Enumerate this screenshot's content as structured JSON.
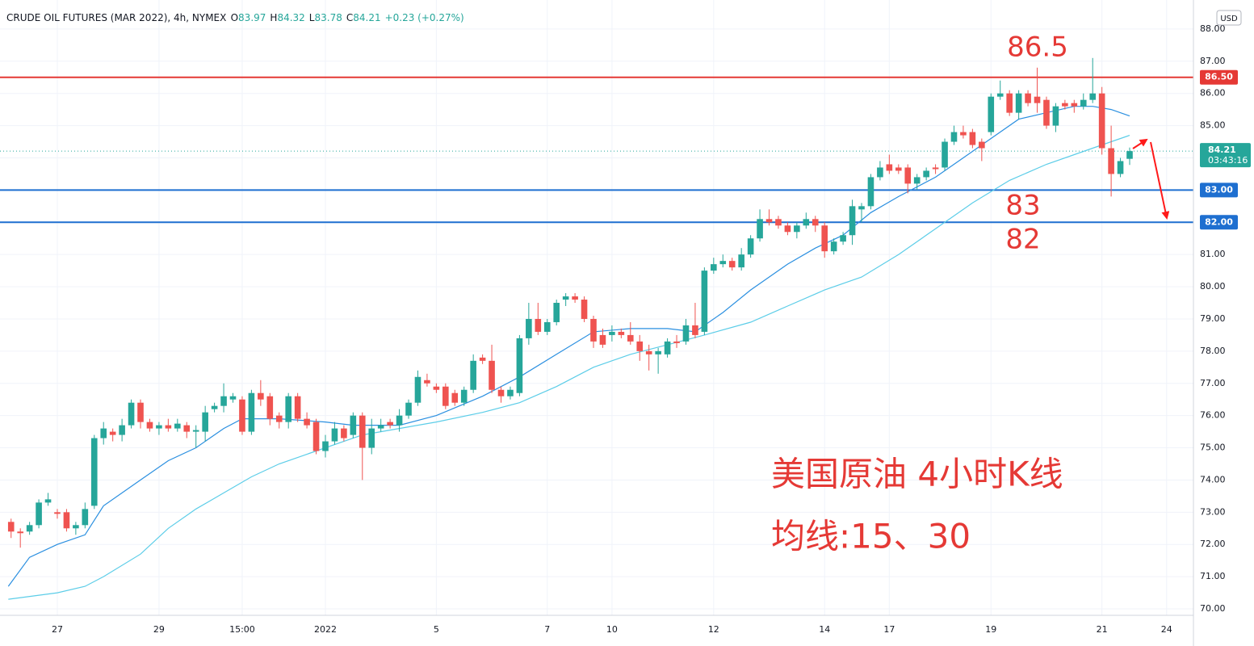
{
  "chart_data": {
    "type": "candlestick",
    "title": "CRUDE OIL FUTURES (MAR 2022), 4h, NYMEX",
    "ohlc_letters": [
      "O",
      "H",
      "L",
      "C"
    ],
    "change": "+0.23 (+0.27%)",
    "currency": "USD",
    "up_color": "#26a69a",
    "down_color": "#ef5350",
    "xlim": [
      -1.2,
      127.9
    ],
    "ylim": [
      69.8,
      88.9
    ],
    "grid": true,
    "xticks": [
      {
        "value": 5,
        "label": "27"
      },
      {
        "value": 16,
        "label": "29"
      },
      {
        "value": 25,
        "label": "15:00"
      },
      {
        "value": 34,
        "label": "2022"
      },
      {
        "value": 46,
        "label": "5"
      },
      {
        "value": 58,
        "label": "7"
      },
      {
        "value": 65,
        "label": "10"
      },
      {
        "value": 76,
        "label": "12"
      },
      {
        "value": 88,
        "label": "14"
      },
      {
        "value": 95,
        "label": "17"
      },
      {
        "value": 106,
        "label": "19"
      },
      {
        "value": 118,
        "label": "21"
      },
      {
        "value": 125,
        "label": "24"
      }
    ],
    "yticks": [
      {
        "value": 70,
        "label": "70.00"
      },
      {
        "value": 71,
        "label": "71.00"
      },
      {
        "value": 72,
        "label": "72.00"
      },
      {
        "value": 73,
        "label": "73.00"
      },
      {
        "value": 74,
        "label": "74.00"
      },
      {
        "value": 75,
        "label": "75.00"
      },
      {
        "value": 76,
        "label": "76.00"
      },
      {
        "value": 77,
        "label": "77.00"
      },
      {
        "value": 78,
        "label": "78.00"
      },
      {
        "value": 79,
        "label": "79.00"
      },
      {
        "value": 80,
        "label": "80.00"
      },
      {
        "value": 81,
        "label": "81.00"
      },
      {
        "value": 82,
        "label": "82.00"
      },
      {
        "value": 83,
        "label": "83.00"
      },
      {
        "value": 84,
        "label": "84.00"
      },
      {
        "value": 85,
        "label": "85.00"
      },
      {
        "value": 86,
        "label": "86.00"
      },
      {
        "value": 87,
        "label": "87.00"
      },
      {
        "value": 88,
        "label": "88.00"
      }
    ],
    "open": [
      72.7,
      72.4,
      72.4,
      72.6,
      73.3,
      73.0,
      73.0,
      72.5,
      72.6,
      73.2,
      75.3,
      75.5,
      75.4,
      75.7,
      76.4,
      75.8,
      75.6,
      75.7,
      75.6,
      75.7,
      75.5,
      75.5,
      76.2,
      76.3,
      76.5,
      76.5,
      75.5,
      76.7,
      76.6,
      76.0,
      75.8,
      76.6,
      75.9,
      75.8,
      74.9,
      75.2,
      75.6,
      75.4,
      76.0,
      75.0,
      75.6,
      75.8,
      75.7,
      76.0,
      76.4,
      77.1,
      76.9,
      76.9,
      76.7,
      76.4,
      76.8,
      77.8,
      77.7,
      76.8,
      76.6,
      76.7,
      78.4,
      79.0,
      78.6,
      78.9,
      79.6,
      79.7,
      79.6,
      79.0,
      78.5,
      78.5,
      78.6,
      78.5,
      78.3,
      78.0,
      77.9,
      77.9,
      78.3,
      78.3,
      78.8,
      78.6,
      80.5,
      80.7,
      80.8,
      80.6,
      81.0,
      81.5,
      82.1,
      82.1,
      81.9,
      81.7,
      81.9,
      82.1,
      81.9,
      81.1,
      81.4,
      81.6,
      82.4,
      82.5,
      83.4,
      83.8,
      83.7,
      83.7,
      83.2,
      83.4,
      83.7,
      83.7,
      84.5,
      84.8,
      84.8,
      84.5,
      84.8,
      85.9,
      86.0,
      85.4,
      86.0,
      85.9,
      85.8,
      85.0,
      85.7,
      85.7,
      85.6,
      85.8,
      86.0,
      84.3,
      83.5,
      83.97
    ],
    "high": [
      72.8,
      72.5,
      72.7,
      73.4,
      73.6,
      73.1,
      73.1,
      72.7,
      73.3,
      75.4,
      75.8,
      75.6,
      75.9,
      76.5,
      76.5,
      75.9,
      75.8,
      75.9,
      75.9,
      75.8,
      75.7,
      76.3,
      76.4,
      77.0,
      76.7,
      76.6,
      76.8,
      77.1,
      76.7,
      76.1,
      76.7,
      76.7,
      76.1,
      75.9,
      75.4,
      75.8,
      75.7,
      76.1,
      76.1,
      75.9,
      75.9,
      75.9,
      76.2,
      76.5,
      77.4,
      77.3,
      77.0,
      77.0,
      76.8,
      76.9,
      77.9,
      77.9,
      78.2,
      76.9,
      76.9,
      78.5,
      79.5,
      79.5,
      79.0,
      79.6,
      79.8,
      79.8,
      79.7,
      79.1,
      78.7,
      78.8,
      78.7,
      78.9,
      78.5,
      78.2,
      78.1,
      78.4,
      78.5,
      79.0,
      79.5,
      80.6,
      80.9,
      81.0,
      80.9,
      81.2,
      81.6,
      82.4,
      82.4,
      82.2,
      82.0,
      82.0,
      82.3,
      82.2,
      82.0,
      81.5,
      81.7,
      82.7,
      82.6,
      83.5,
      83.9,
      84.1,
      83.8,
      83.8,
      83.5,
      83.7,
      83.8,
      84.6,
      85.0,
      85.0,
      84.9,
      84.6,
      86.0,
      86.4,
      86.1,
      86.1,
      86.1,
      86.8,
      85.9,
      85.7,
      85.8,
      85.8,
      86.0,
      87.1,
      86.2,
      85.0,
      84.0,
      84.32
    ],
    "low": [
      72.2,
      71.9,
      72.3,
      72.5,
      73.2,
      72.8,
      72.4,
      72.3,
      72.5,
      73.1,
      75.1,
      75.2,
      75.2,
      75.6,
      75.6,
      75.5,
      75.4,
      75.5,
      75.5,
      75.3,
      75.0,
      75.2,
      76.1,
      76.1,
      76.4,
      75.4,
      75.4,
      76.3,
      75.7,
      75.6,
      75.6,
      75.8,
      75.6,
      74.8,
      74.7,
      75.1,
      75.2,
      75.3,
      74.0,
      74.8,
      75.5,
      75.6,
      75.5,
      75.9,
      76.3,
      76.9,
      76.7,
      76.2,
      76.3,
      76.3,
      76.7,
      77.6,
      76.7,
      76.4,
      76.5,
      76.6,
      78.2,
      78.5,
      78.5,
      78.8,
      79.4,
      79.5,
      78.9,
      78.1,
      78.1,
      78.3,
      78.4,
      78.2,
      77.7,
      77.4,
      77.3,
      77.8,
      78.1,
      78.2,
      78.4,
      78.5,
      80.4,
      80.6,
      80.5,
      80.5,
      80.9,
      81.4,
      81.9,
      81.8,
      81.6,
      81.5,
      81.8,
      81.7,
      80.9,
      81.0,
      81.3,
      81.3,
      82.0,
      82.4,
      83.3,
      83.5,
      83.5,
      82.9,
      83.0,
      83.3,
      83.5,
      83.6,
      84.4,
      84.6,
      84.3,
      83.9,
      84.7,
      85.8,
      85.3,
      85.2,
      85.6,
      85.4,
      84.9,
      84.8,
      85.5,
      85.4,
      85.5,
      85.7,
      84.1,
      82.8,
      83.4,
      83.78
    ],
    "close": [
      72.4,
      72.35,
      72.6,
      73.3,
      73.4,
      72.95,
      72.5,
      72.6,
      73.1,
      75.3,
      75.6,
      75.4,
      75.7,
      76.4,
      75.8,
      75.6,
      75.7,
      75.6,
      75.75,
      75.5,
      75.55,
      76.1,
      76.3,
      76.6,
      76.6,
      75.5,
      76.7,
      76.5,
      75.9,
      75.8,
      76.6,
      75.9,
      75.7,
      74.9,
      75.2,
      75.6,
      75.3,
      76.0,
      75.0,
      75.6,
      75.7,
      75.7,
      76.0,
      76.4,
      77.2,
      77.0,
      76.8,
      76.3,
      76.4,
      76.8,
      77.7,
      77.7,
      76.8,
      76.6,
      76.8,
      78.4,
      79.0,
      78.6,
      78.9,
      79.5,
      79.7,
      79.6,
      79.0,
      78.3,
      78.2,
      78.6,
      78.5,
      78.3,
      78.0,
      77.9,
      78.0,
      78.3,
      78.25,
      78.8,
      78.5,
      80.5,
      80.7,
      80.8,
      80.6,
      81.0,
      81.5,
      82.1,
      82.0,
      81.9,
      81.7,
      81.9,
      82.1,
      81.9,
      81.1,
      81.4,
      81.6,
      82.5,
      82.5,
      83.4,
      83.7,
      83.6,
      83.6,
      83.2,
      83.4,
      83.6,
      83.65,
      84.5,
      84.8,
      84.7,
      84.4,
      84.3,
      85.9,
      86.0,
      85.4,
      86.0,
      85.7,
      85.7,
      85.0,
      85.6,
      85.6,
      85.6,
      85.8,
      86.0,
      84.3,
      83.5,
      83.9,
      84.21
    ],
    "ma": [
      {
        "color": "#2a8fe0",
        "x": [
          -0.3,
          2,
          5,
          8,
          10,
          14,
          17,
          20,
          23,
          25,
          29,
          34,
          37,
          42,
          46,
          51,
          55,
          59,
          63,
          67,
          71,
          74,
          77,
          80,
          84,
          87,
          90,
          93,
          96,
          100,
          103,
          106,
          109,
          112,
          115,
          117,
          119,
          121
        ],
        "values": [
          70.7,
          71.6,
          72.0,
          72.3,
          73.2,
          74.0,
          74.6,
          75.0,
          75.6,
          75.9,
          75.9,
          75.8,
          75.7,
          75.7,
          76.0,
          76.6,
          77.2,
          77.9,
          78.6,
          78.7,
          78.7,
          78.6,
          79.2,
          79.9,
          80.7,
          81.2,
          81.6,
          82.3,
          82.8,
          83.4,
          84.0,
          84.6,
          85.2,
          85.4,
          85.6,
          85.6,
          85.5,
          85.3
        ]
      },
      {
        "color": "#5ccde8",
        "x": [
          -0.3,
          5,
          8,
          10,
          14,
          17,
          20,
          23,
          26,
          29,
          34,
          38,
          42,
          46,
          51,
          55,
          59,
          63,
          67,
          71,
          75,
          80,
          84,
          88,
          92,
          96,
          100,
          104,
          108,
          112,
          116,
          119,
          121
        ],
        "values": [
          70.3,
          70.5,
          70.7,
          71.0,
          71.7,
          72.5,
          73.1,
          73.6,
          74.1,
          74.5,
          75.0,
          75.4,
          75.6,
          75.8,
          76.1,
          76.4,
          76.9,
          77.5,
          77.9,
          78.2,
          78.5,
          78.9,
          79.4,
          79.9,
          80.3,
          81.0,
          81.8,
          82.6,
          83.3,
          83.8,
          84.2,
          84.5,
          84.7
        ]
      }
    ],
    "levels": [
      {
        "value": 86.5,
        "label": "86.50",
        "color": "#e53935"
      },
      {
        "value": 83,
        "label": "83.00",
        "color": "#1e6fd0"
      },
      {
        "value": 82,
        "label": "82.00",
        "color": "#1e6fd0"
      }
    ],
    "last_price": {
      "value": 84.21,
      "label": "84.21",
      "countdown": "03:43:16"
    },
    "annotations": [
      "86.5",
      "83",
      "82",
      "美国原油 4小时K线",
      "均线:15、30"
    ]
  }
}
